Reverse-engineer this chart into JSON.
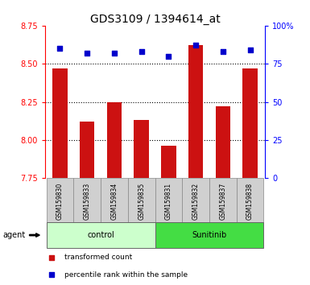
{
  "title": "GDS3109 / 1394614_at",
  "samples": [
    "GSM159830",
    "GSM159833",
    "GSM159834",
    "GSM159835",
    "GSM159831",
    "GSM159832",
    "GSM159837",
    "GSM159838"
  ],
  "bar_values": [
    8.47,
    8.12,
    8.25,
    8.13,
    7.96,
    8.62,
    8.22,
    8.47
  ],
  "percentile_values": [
    85,
    82,
    82,
    83,
    80,
    87,
    83,
    84
  ],
  "bar_color": "#cc1111",
  "dot_color": "#0000cc",
  "ylim_left": [
    7.75,
    8.75
  ],
  "ylim_right": [
    0,
    100
  ],
  "yticks_left": [
    7.75,
    8.0,
    8.25,
    8.5,
    8.75
  ],
  "yticks_right": [
    0,
    25,
    50,
    75,
    100
  ],
  "grid_values": [
    8.0,
    8.25,
    8.5
  ],
  "groups": [
    {
      "label": "control",
      "indices": [
        0,
        1,
        2,
        3
      ],
      "color": "#ccffcc"
    },
    {
      "label": "Sunitinib",
      "indices": [
        4,
        5,
        6,
        7
      ],
      "color": "#44dd44"
    }
  ],
  "agent_label": "agent",
  "legend_bar_label": "transformed count",
  "legend_dot_label": "percentile rank within the sample",
  "title_fontsize": 10,
  "tick_fontsize": 7,
  "sample_fontsize": 5.5,
  "group_fontsize": 7,
  "legend_fontsize": 6.5,
  "bar_width": 0.55,
  "xlim": [
    -0.55,
    7.55
  ],
  "sample_box_color": "#d0d0d0",
  "sample_box_edge": "#888888",
  "group_edge": "#666666"
}
